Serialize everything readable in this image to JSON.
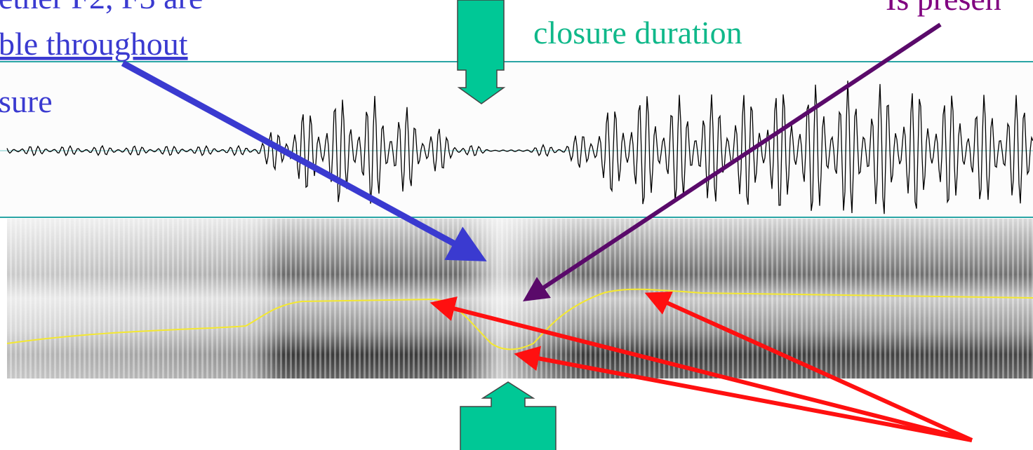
{
  "left_note": {
    "lines": [
      "ether F2, F3 are",
      "ble throughout",
      "sure"
    ]
  },
  "top_label": "closure duration",
  "right_note": "Is presen"
}
